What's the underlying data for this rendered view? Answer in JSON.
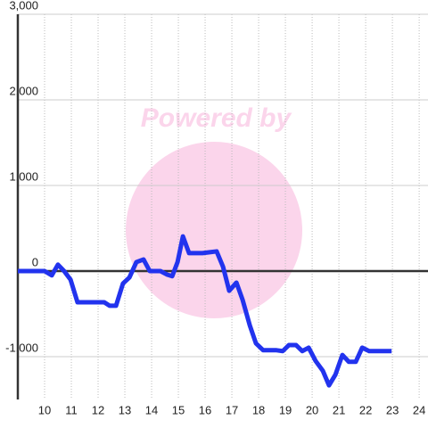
{
  "chart_data": {
    "type": "line",
    "watermark": "Powered by",
    "x": [
      9.0,
      10.0,
      10.27,
      10.5,
      10.73,
      10.97,
      11.23,
      12.23,
      12.43,
      12.67,
      12.93,
      13.17,
      13.43,
      13.7,
      13.93,
      14.33,
      14.57,
      14.77,
      14.97,
      15.17,
      15.4,
      15.9,
      16.17,
      16.43,
      16.67,
      16.9,
      17.17,
      17.4,
      17.67,
      17.9,
      18.17,
      18.67,
      18.9,
      19.13,
      19.4,
      19.63,
      19.87,
      20.13,
      20.4,
      20.63,
      20.87,
      21.13,
      21.37,
      21.63,
      21.87,
      22.13,
      22.97
    ],
    "series": [
      {
        "color": "#2233ee",
        "values": [
          0,
          0,
          -50,
          75,
          0,
          -100,
          -365,
          -365,
          -405,
          -405,
          -145,
          -75,
          105,
          135,
          0,
          0,
          -40,
          -60,
          105,
          405,
          210,
          210,
          220,
          230,
          50,
          -230,
          -135,
          -335,
          -635,
          -845,
          -925,
          -925,
          -935,
          -865,
          -865,
          -935,
          -895,
          -1050,
          -1165,
          -1335,
          -1210,
          -980,
          -1060,
          -1060,
          -895,
          -935,
          -935
        ]
      }
    ],
    "xlim": [
      9,
      24.33
    ],
    "xticks": [
      10,
      11,
      12,
      13,
      14,
      15,
      16,
      17,
      18,
      19,
      20,
      21,
      22,
      23,
      24
    ],
    "ylim": [
      -1500,
      3000
    ],
    "yticks": [
      {
        "value": -1000,
        "label": "-1,000"
      },
      0,
      {
        "value": 1000,
        "label": "1,000"
      },
      {
        "value": 2000,
        "label": "2,000"
      },
      {
        "value": 3000,
        "label": "3,000"
      }
    ],
    "grid": true
  }
}
